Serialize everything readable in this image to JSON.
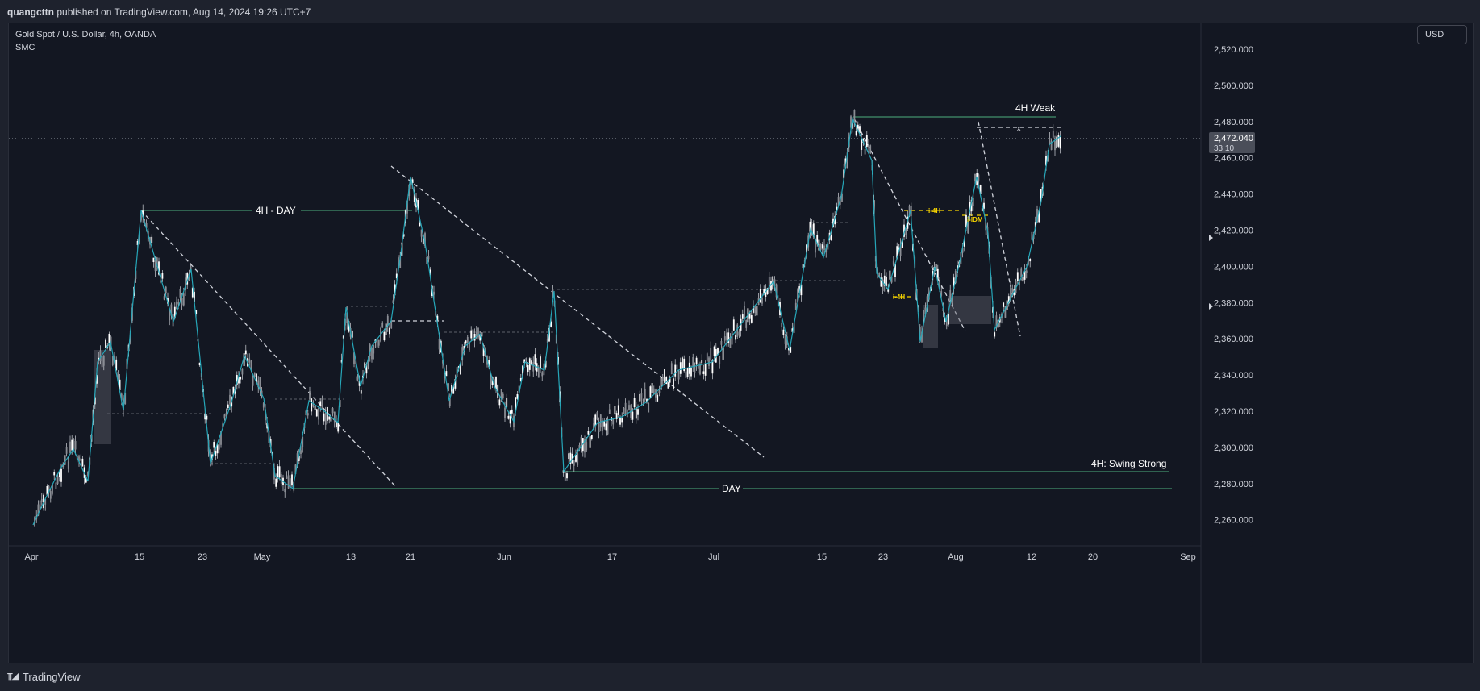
{
  "header": {
    "author": "quangcttn",
    "published_text": "published on TradingView.com, Aug 14, 2024 19:26 UTC+7"
  },
  "chart": {
    "symbol_line": "Gold Spot / U.S. Dollar, 4h, OANDA",
    "indicator": "SMC",
    "currency_button": "USD",
    "current_price": "2,472.040",
    "countdown": "33:10",
    "price_ticks": [
      "2,520.000",
      "2,500.000",
      "2,480.000",
      "2,460.000",
      "2,440.000",
      "2,420.000",
      "2,400.000",
      "2,380.000",
      "2,360.000",
      "2,340.000",
      "2,320.000",
      "2,300.000",
      "2,280.000",
      "2,260.000"
    ],
    "price_tick_values": [
      2520,
      2500,
      2480,
      2460,
      2440,
      2420,
      2400,
      2380,
      2360,
      2340,
      2320,
      2300,
      2280,
      2260
    ],
    "time_ticks": [
      "Apr",
      "15",
      "23",
      "May",
      "13",
      "21",
      "Jun",
      "17",
      "Jul",
      "15",
      "23",
      "Aug",
      "12",
      "20",
      "Sep"
    ],
    "annotations": {
      "weak_high": "4H Weak",
      "swing_strong": "4H: Swing Strong",
      "four_h_day": "4H - DAY",
      "day": "DAY",
      "i4h_a": "i-4H",
      "i4h_b": "i-4H",
      "idm": "i-IDM",
      "x_mark": "x"
    },
    "colors": {
      "background": "#131722",
      "candle": "#e0e0e0",
      "zigzag": "#26a6b8",
      "level_line": "#4caf7d",
      "dashed": "#d1d4dc",
      "idm_label": "#f5d300"
    }
  },
  "footer": {
    "brand": "TradingView"
  }
}
